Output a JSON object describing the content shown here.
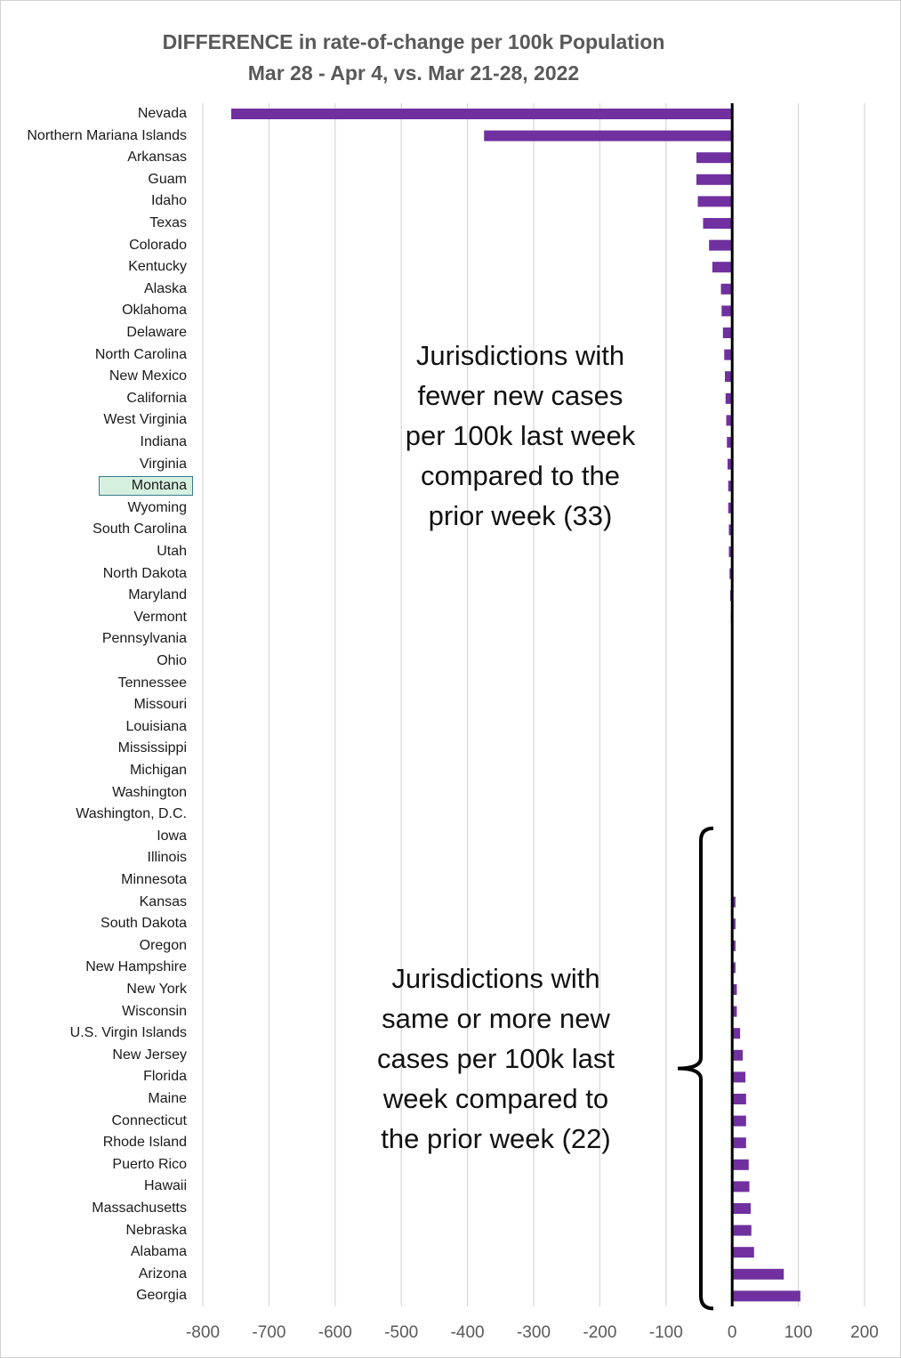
{
  "chart_data": {
    "type": "bar",
    "orientation": "horizontal",
    "title": "DIFFERENCE in rate-of-change per 100k Population",
    "subtitle": "Mar 28 - Apr 4, vs. Mar 21-28, 2022",
    "xlabel": "",
    "ylabel": "",
    "xlim": [
      -800,
      200
    ],
    "x_ticks": [
      -800,
      -700,
      -600,
      -500,
      -400,
      -300,
      -200,
      -100,
      0,
      100,
      200
    ],
    "x_tick_labels": [
      "-800",
      "-700",
      "-600",
      "-500",
      "-400",
      "-300",
      "-200",
      "-100",
      "0",
      "100",
      "200"
    ],
    "grid": "vertical",
    "bar_color": "#7030a0",
    "highlight_color": "#d6f0df",
    "highlighted_category": "Montana",
    "categories": [
      "Nevada",
      "Northern Mariana Islands",
      "Arkansas",
      "Guam",
      "Idaho",
      "Texas",
      "Colorado",
      "Kentucky",
      "Alaska",
      "Oklahoma",
      "Delaware",
      "North Carolina",
      "New Mexico",
      "California",
      "West Virginia",
      "Indiana",
      "Virginia",
      "Montana",
      "Wyoming",
      "South Carolina",
      "Utah",
      "North Dakota",
      "Maryland",
      "Vermont",
      "Pennsylvania",
      "Ohio",
      "Tennessee",
      "Missouri",
      "Louisiana",
      "Mississippi",
      "Michigan",
      "Washington",
      "Washington, D.C.",
      "Iowa",
      "Illinois",
      "Minnesota",
      "Kansas",
      "South Dakota",
      "Oregon",
      "New Hampshire",
      "New York",
      "Wisconsin",
      "U.S. Virgin Islands",
      "New Jersey",
      "Florida",
      "Maine",
      "Connecticut",
      "Rhode Island",
      "Puerto Rico",
      "Hawaii",
      "Massachusetts",
      "Nebraska",
      "Alabama",
      "Arizona",
      "Georgia"
    ],
    "values": [
      -757,
      -375,
      -54,
      -54,
      -52,
      -44,
      -35,
      -30,
      -17,
      -16,
      -14,
      -12,
      -11,
      -10,
      -9,
      -8,
      -7,
      -6,
      -6,
      -5,
      -5,
      -4,
      -3,
      -2,
      -1,
      -1,
      -1,
      -1,
      -1,
      -1,
      -0.5,
      -0.3,
      -0.2,
      0,
      0,
      0,
      5,
      5,
      5,
      5,
      7,
      7,
      12,
      16,
      20,
      21,
      21,
      21,
      25,
      26,
      28,
      29,
      33,
      78,
      103
    ],
    "annotations": [
      {
        "id": "fewer",
        "text": "Jurisdictions with\nfewer new cases\nper 100k last week\ncompared to the\nprior week (33)"
      },
      {
        "id": "more",
        "text": "Jurisdictions with\nsame or more new\ncases per 100k last\nweek compared to\nthe prior week (22)"
      }
    ]
  }
}
